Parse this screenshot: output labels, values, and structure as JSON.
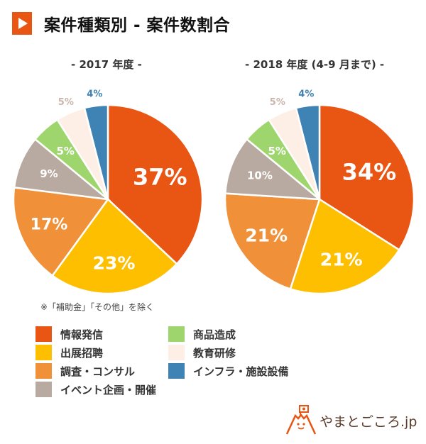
{
  "title": "案件種類別 - 案件数割合",
  "note": "※「補助金」「その他」を除く",
  "logo_text": "やまとごころ.jp",
  "categories": [
    "情報発信",
    "出展招聘",
    "調査・コンサル",
    "イベント企画・開催",
    "商品造成",
    "教育研修",
    "インフラ・施設設備"
  ],
  "colors": [
    "#e95513",
    "#fdbf00",
    "#f0913a",
    "#b8aaa0",
    "#9ed66d",
    "#fdeee6",
    "#3f82b4"
  ],
  "chart_data": [
    {
      "type": "pie",
      "title": "- 2017 年度 -",
      "categories": [
        "情報発信",
        "出展招聘",
        "調査・コンサル",
        "イベント企画・開催",
        "商品造成",
        "教育研修",
        "インフラ・施設設備"
      ],
      "values": [
        37,
        23,
        17,
        9,
        5,
        5,
        4
      ],
      "unit": "%",
      "start": "top",
      "direction": "clockwise"
    },
    {
      "type": "pie",
      "title": "- 2018 年度 (4-9 月まで) -",
      "categories": [
        "情報発信",
        "出展招聘",
        "調査・コンサル",
        "イベント企画・開催",
        "商品造成",
        "教育研修",
        "インフラ・施設設備"
      ],
      "values": [
        34,
        21,
        21,
        10,
        5,
        5,
        4
      ],
      "unit": "%",
      "start": "top",
      "direction": "clockwise"
    }
  ]
}
